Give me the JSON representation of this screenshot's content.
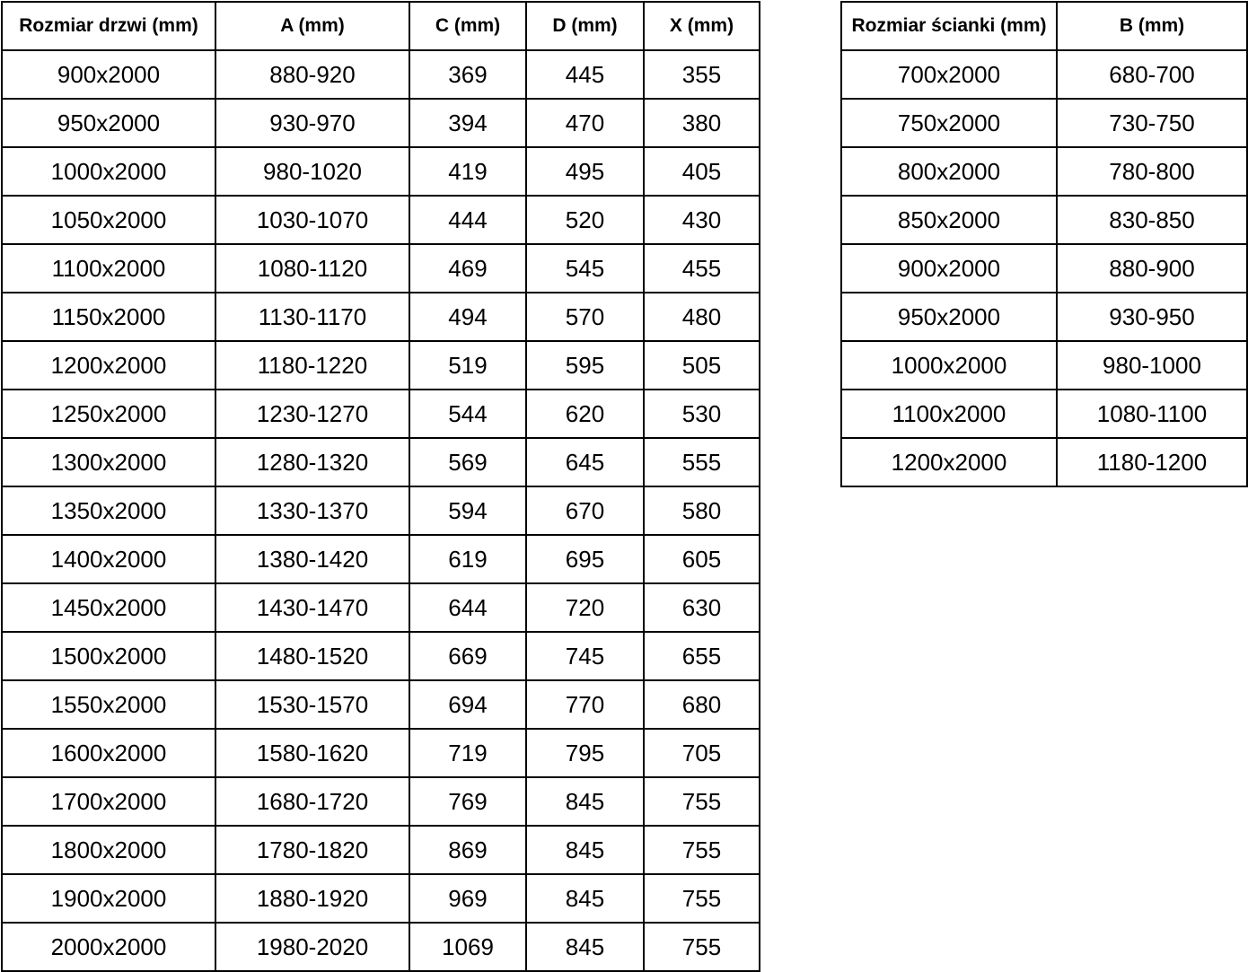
{
  "page": {
    "background_color": "#ffffff",
    "text_color": "#000000",
    "border_color": "#000000"
  },
  "door_table": {
    "headers": [
      "Rozmiar drzwi (mm)",
      "A (mm)",
      "C (mm)",
      "D (mm)",
      "X (mm)"
    ],
    "rows": [
      [
        "900x2000",
        "880-920",
        "369",
        "445",
        "355"
      ],
      [
        "950x2000",
        "930-970",
        "394",
        "470",
        "380"
      ],
      [
        "1000x2000",
        "980-1020",
        "419",
        "495",
        "405"
      ],
      [
        "1050x2000",
        "1030-1070",
        "444",
        "520",
        "430"
      ],
      [
        "1100x2000",
        "1080-1120",
        "469",
        "545",
        "455"
      ],
      [
        "1150x2000",
        "1130-1170",
        "494",
        "570",
        "480"
      ],
      [
        "1200x2000",
        "1180-1220",
        "519",
        "595",
        "505"
      ],
      [
        "1250x2000",
        "1230-1270",
        "544",
        "620",
        "530"
      ],
      [
        "1300x2000",
        "1280-1320",
        "569",
        "645",
        "555"
      ],
      [
        "1350x2000",
        "1330-1370",
        "594",
        "670",
        "580"
      ],
      [
        "1400x2000",
        "1380-1420",
        "619",
        "695",
        "605"
      ],
      [
        "1450x2000",
        "1430-1470",
        "644",
        "720",
        "630"
      ],
      [
        "1500x2000",
        "1480-1520",
        "669",
        "745",
        "655"
      ],
      [
        "1550x2000",
        "1530-1570",
        "694",
        "770",
        "680"
      ],
      [
        "1600x2000",
        "1580-1620",
        "719",
        "795",
        "705"
      ],
      [
        "1700x2000",
        "1680-1720",
        "769",
        "845",
        "755"
      ],
      [
        "1800x2000",
        "1780-1820",
        "869",
        "845",
        "755"
      ],
      [
        "1900x2000",
        "1880-1920",
        "969",
        "845",
        "755"
      ],
      [
        "2000x2000",
        "1980-2020",
        "1069",
        "845",
        "755"
      ]
    ]
  },
  "wall_table": {
    "headers": [
      "Rozmiar ścianki (mm)",
      "B (mm)"
    ],
    "rows": [
      [
        "700x2000",
        "680-700"
      ],
      [
        "750x2000",
        "730-750"
      ],
      [
        "800x2000",
        "780-800"
      ],
      [
        "850x2000",
        "830-850"
      ],
      [
        "900x2000",
        "880-900"
      ],
      [
        "950x2000",
        "930-950"
      ],
      [
        "1000x2000",
        "980-1000"
      ],
      [
        "1100x2000",
        "1080-1100"
      ],
      [
        "1200x2000",
        "1180-1200"
      ]
    ]
  }
}
